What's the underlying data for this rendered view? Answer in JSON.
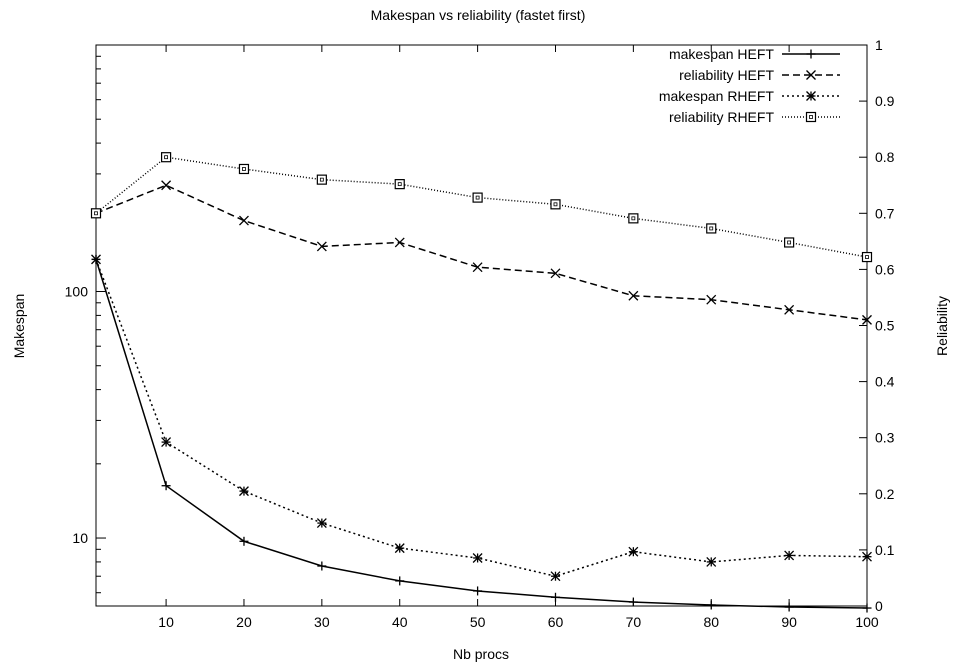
{
  "chart_data": {
    "type": "line",
    "title": "Makespan vs reliability (fastet first)",
    "xlabel": "Nb procs",
    "ylabel": "Makespan",
    "y2label": "Reliability",
    "x": [
      1,
      10,
      20,
      30,
      40,
      50,
      60,
      70,
      80,
      90,
      100
    ],
    "xlim": [
      1,
      100
    ],
    "xticks": [
      "10",
      "20",
      "30",
      "40",
      "50",
      "60",
      "70",
      "80",
      "90",
      "100"
    ],
    "ylim": [
      5.3,
      1000
    ],
    "yscale": "log",
    "yticks": [
      "10",
      "100"
    ],
    "y2lim": [
      0,
      1
    ],
    "y2ticks": [
      "0",
      "0.1",
      "0.2",
      "0.3",
      "0.4",
      "0.5",
      "0.6",
      "0.7",
      "0.8",
      "0.9",
      "1"
    ],
    "legend_position": "top-right",
    "series": [
      {
        "name": "makespan HEFT",
        "axis": "left",
        "style": "solid",
        "marker": "plus",
        "values": [
          135,
          16.3,
          9.7,
          7.7,
          6.7,
          6.1,
          5.75,
          5.5,
          5.35,
          5.25,
          5.2
        ]
      },
      {
        "name": "reliability HEFT",
        "axis": "right",
        "style": "dashed",
        "marker": "x",
        "values": [
          0.7,
          0.75,
          0.687,
          0.641,
          0.648,
          0.604,
          0.593,
          0.553,
          0.546,
          0.528,
          0.51
        ]
      },
      {
        "name": "makespan RHEFT",
        "axis": "left",
        "style": "dotted",
        "marker": "star",
        "values": [
          135,
          24.5,
          15.5,
          11.5,
          9.1,
          8.3,
          7.0,
          8.8,
          8.0,
          8.5,
          8.4
        ]
      },
      {
        "name": "reliability RHEFT",
        "axis": "right",
        "style": "dotted-fine",
        "marker": "square",
        "values": [
          0.7,
          0.8,
          0.779,
          0.76,
          0.752,
          0.728,
          0.716,
          0.691,
          0.673,
          0.648,
          0.622
        ]
      }
    ]
  }
}
